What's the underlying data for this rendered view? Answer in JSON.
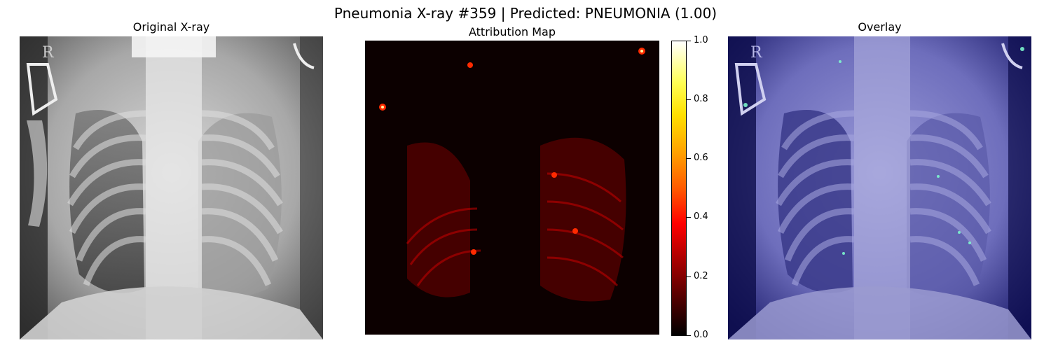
{
  "figure": {
    "title": "Pneumonia X-ray #359 | Predicted: PNEUMONIA (1.00)"
  },
  "panels": [
    {
      "title": "Original X-ray",
      "content": "grayscale-chest-xray"
    },
    {
      "title": "Attribution Map",
      "content": "attribution-heatmap",
      "colormap": "hot"
    },
    {
      "title": "Overlay",
      "content": "xray-with-attribution-overlay",
      "colormap": "jet"
    }
  ],
  "colorbar": {
    "ticks": [
      "0.0",
      "0.2",
      "0.4",
      "0.6",
      "0.8",
      "1.0"
    ],
    "range": [
      0.0,
      1.0
    ]
  },
  "colors": {
    "heat_low": "#000000",
    "heat_mid": "#ff0000",
    "heat_high": "#ffffff",
    "overlay_tint": "#1a1a8c"
  }
}
